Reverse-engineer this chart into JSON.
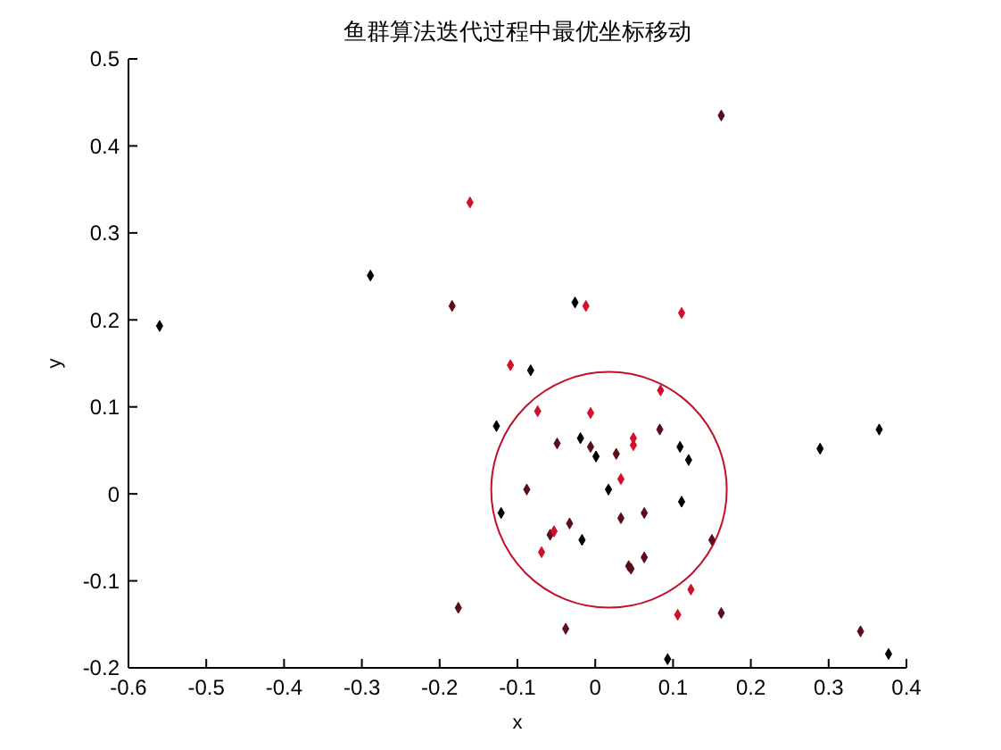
{
  "chart_data": {
    "type": "scatter",
    "title": "鱼群算法迭代过程中最优坐标移动",
    "xlabel": "x",
    "ylabel": "y",
    "xlim": [
      -0.6,
      0.4
    ],
    "xticks": [
      -0.6,
      -0.5,
      -0.4,
      -0.3,
      -0.2,
      -0.1,
      0,
      0.1,
      0.2,
      0.3,
      0.4
    ],
    "ylim": [
      -0.2,
      0.5
    ],
    "yticks": [
      -0.2,
      -0.1,
      0,
      0.1,
      0.2,
      0.3,
      0.4,
      0.5
    ],
    "grid": false,
    "marker": "diamond",
    "series": [
      {
        "color": "#000000",
        "x": [
          -0.56,
          -0.289,
          -0.026,
          -0.083,
          -0.127,
          -0.019,
          0.109,
          0.001,
          0.12,
          0.017,
          0.111,
          -0.121,
          -0.017,
          0.289,
          0.365,
          0.377,
          0.093
        ],
        "values": [
          0.193,
          0.251,
          0.22,
          0.142,
          0.078,
          0.064,
          0.054,
          0.043,
          0.039,
          0.005,
          -0.009,
          -0.022,
          -0.053,
          0.052,
          0.074,
          -0.184,
          -0.19
        ]
      },
      {
        "color": "#5a0e1a",
        "x": [
          -0.184,
          0.162,
          -0.176,
          0.083,
          -0.049,
          -0.006,
          0.027,
          -0.088,
          0.063,
          0.033,
          -0.033,
          -0.058,
          0.15,
          0.063,
          0.043,
          0.046,
          0.162,
          -0.038,
          0.341
        ],
        "values": [
          0.216,
          0.435,
          -0.131,
          0.074,
          0.058,
          0.054,
          0.046,
          0.005,
          -0.022,
          -0.028,
          -0.034,
          -0.047,
          -0.053,
          -0.073,
          -0.083,
          -0.086,
          -0.137,
          -0.155,
          -0.158
        ]
      },
      {
        "color": "#d0102a",
        "x": [
          -0.161,
          -0.012,
          0.111,
          -0.109,
          0.084,
          -0.074,
          -0.006,
          0.049,
          0.049,
          0.033,
          -0.053,
          -0.069,
          0.123,
          0.106
        ],
        "values": [
          0.335,
          0.216,
          0.208,
          0.148,
          0.119,
          0.095,
          0.093,
          0.064,
          0.056,
          0.017,
          -0.043,
          -0.067,
          -0.11,
          -0.139
        ]
      }
    ]
  }
}
